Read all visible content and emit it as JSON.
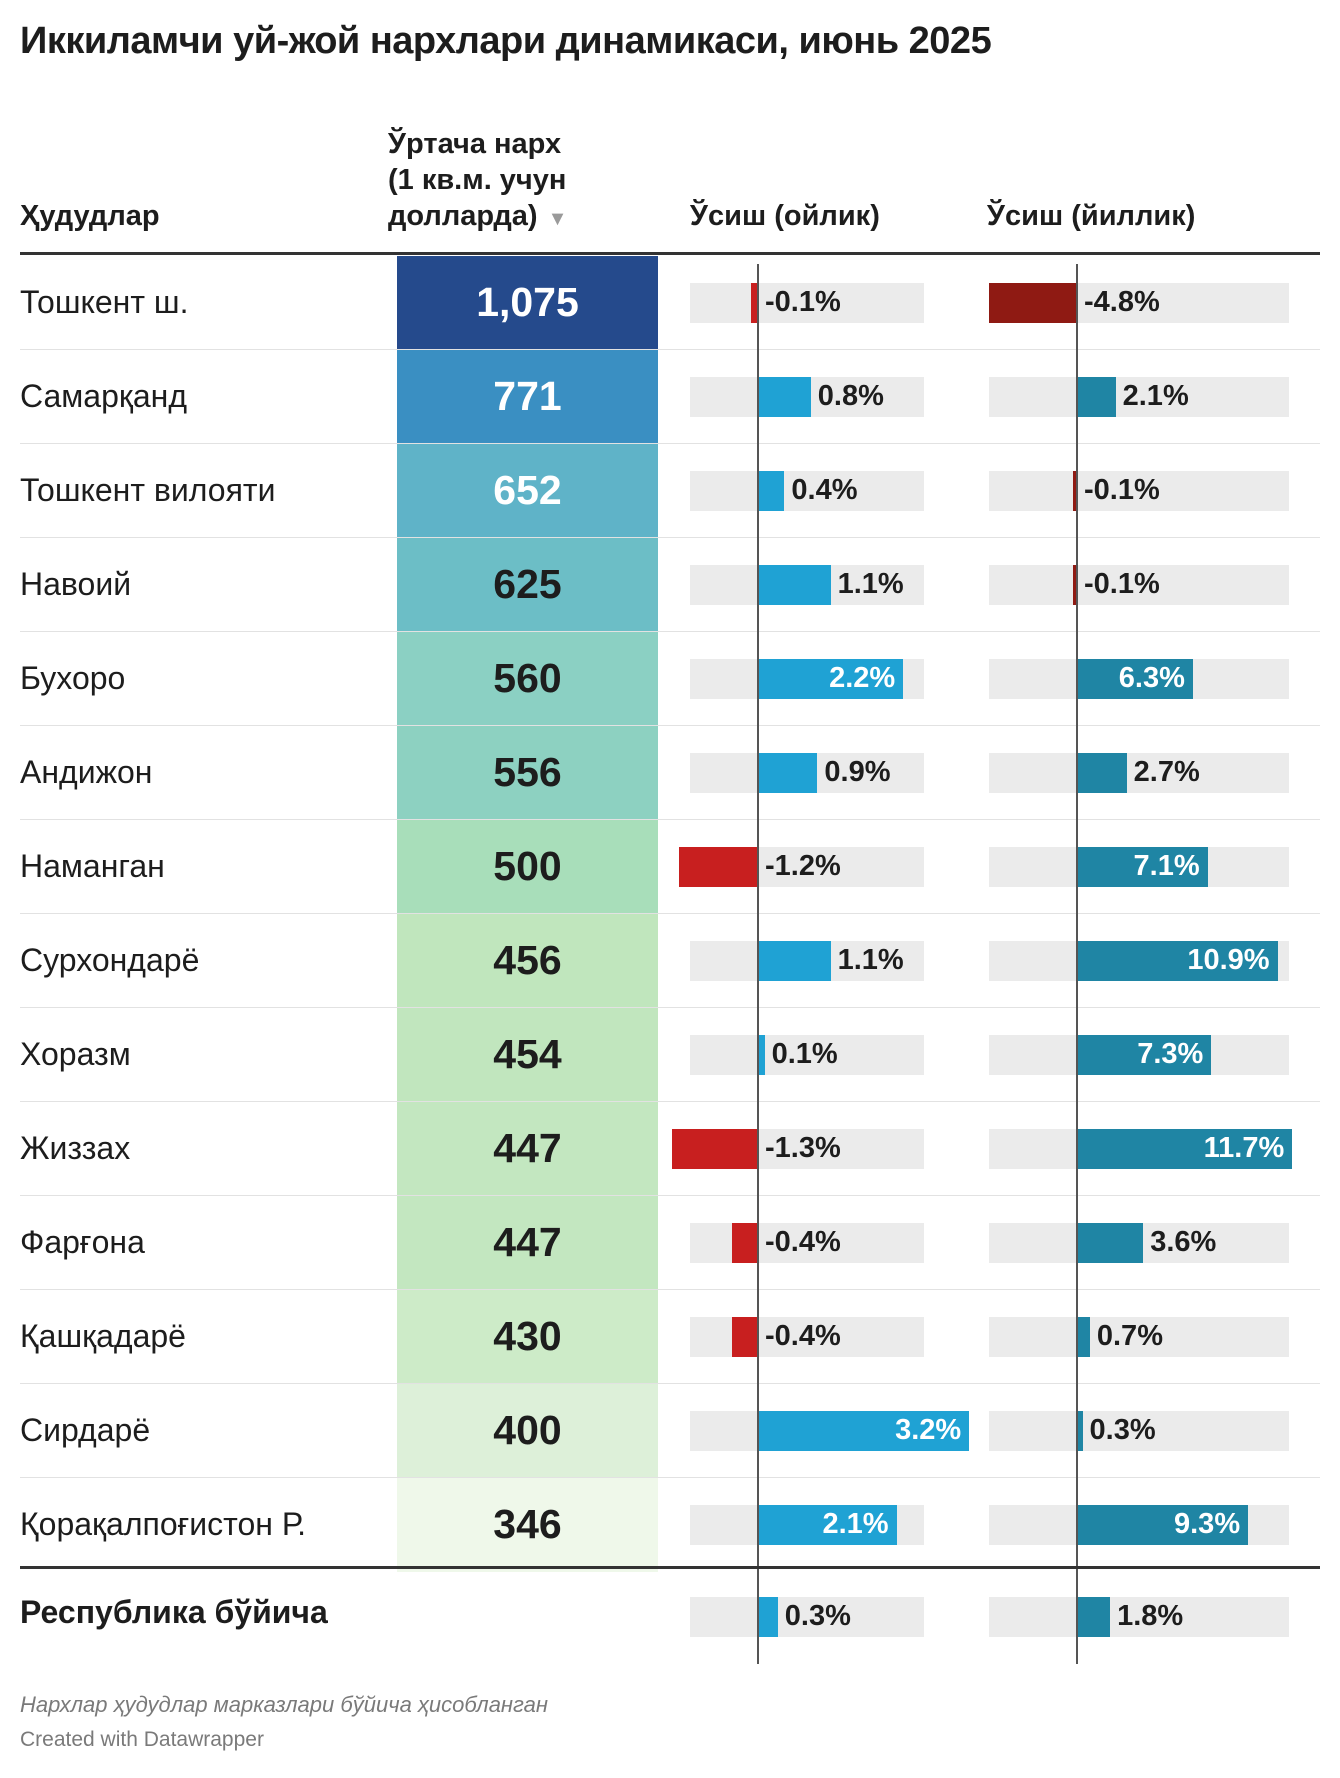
{
  "title": "Иккиламчи уй-жой нархлари динамикаси, июнь 2025",
  "headers": {
    "region": "Ҳудудлар",
    "price_line1": "Ўртача нарх",
    "price_line2": "(1 кв.м. учун",
    "price_line3": "долларда)",
    "sort_arrow": "▼",
    "monthly": "Ўсиш (ойлик)",
    "yearly": "Ўсиш (йиллик)"
  },
  "colors": {
    "positive_monthly": "#1fa2d4",
    "positive_yearly": "#1f85a4",
    "negative_monthly": "#c81f1f",
    "negative_yearly": "#8f1a13",
    "track": "#ebebeb"
  },
  "chart_data": {
    "type": "table",
    "columns": [
      "region",
      "price_usd_per_sqm",
      "growth_monthly_pct",
      "growth_yearly_pct"
    ],
    "rows": [
      {
        "region": "Тошкент ш.",
        "price": "1,075",
        "price_value": 1075,
        "monthly": "-0.1%",
        "monthly_value": -0.1,
        "yearly": "-4.8%",
        "yearly_value": -4.8,
        "price_color": "#254a8c"
      },
      {
        "region": "Самарқанд",
        "price": "771",
        "price_value": 771,
        "monthly": "0.8%",
        "monthly_value": 0.8,
        "yearly": "2.1%",
        "yearly_value": 2.1,
        "price_color": "#3a8fc2"
      },
      {
        "region": "Тошкент вилояти",
        "price": "652",
        "price_value": 652,
        "monthly": "0.4%",
        "monthly_value": 0.4,
        "yearly": "-0.1%",
        "yearly_value": -0.1,
        "price_color": "#5fb3c8"
      },
      {
        "region": "Навоий",
        "price": "625",
        "price_value": 625,
        "monthly": "1.1%",
        "monthly_value": 1.1,
        "yearly": "-0.1%",
        "yearly_value": -0.1,
        "price_color": "#6cbec6"
      },
      {
        "region": "Бухоро",
        "price": "560",
        "price_value": 560,
        "monthly": "2.2%",
        "monthly_value": 2.2,
        "yearly": "6.3%",
        "yearly_value": 6.3,
        "price_color": "#8bd0c3"
      },
      {
        "region": "Андижон",
        "price": "556",
        "price_value": 556,
        "monthly": "0.9%",
        "monthly_value": 0.9,
        "yearly": "2.7%",
        "yearly_value": 2.7,
        "price_color": "#8dd1c1"
      },
      {
        "region": "Наманган",
        "price": "500",
        "price_value": 500,
        "monthly": "-1.2%",
        "monthly_value": -1.2,
        "yearly": "7.1%",
        "yearly_value": 7.1,
        "price_color": "#a8deba"
      },
      {
        "region": "Сурхондарё",
        "price": "456",
        "price_value": 456,
        "monthly": "1.1%",
        "monthly_value": 1.1,
        "yearly": "10.9%",
        "yearly_value": 10.9,
        "price_color": "#c0e6bd"
      },
      {
        "region": "Хоразм",
        "price": "454",
        "price_value": 454,
        "monthly": "0.1%",
        "monthly_value": 0.1,
        "yearly": "7.3%",
        "yearly_value": 7.3,
        "price_color": "#c1e6be"
      },
      {
        "region": "Жиззах",
        "price": "447",
        "price_value": 447,
        "monthly": "-1.3%",
        "monthly_value": -1.3,
        "yearly": "11.7%",
        "yearly_value": 11.7,
        "price_color": "#c3e7c0"
      },
      {
        "region": "Фарғона",
        "price": "447",
        "price_value": 447,
        "monthly": "-0.4%",
        "monthly_value": -0.4,
        "yearly": "3.6%",
        "yearly_value": 3.6,
        "price_color": "#c3e7c0"
      },
      {
        "region": "Қашқадарё",
        "price": "430",
        "price_value": 430,
        "monthly": "-0.4%",
        "monthly_value": -0.4,
        "yearly": "0.7%",
        "yearly_value": 0.7,
        "price_color": "#cdebc8"
      },
      {
        "region": "Сирдарё",
        "price": "400",
        "price_value": 400,
        "monthly": "3.2%",
        "monthly_value": 3.2,
        "yearly": "0.3%",
        "yearly_value": 0.3,
        "price_color": "#ddf0d9"
      },
      {
        "region": "Қорақалпоғистон Р.",
        "price": "346",
        "price_value": 346,
        "monthly": "2.1%",
        "monthly_value": 2.1,
        "yearly": "9.3%",
        "yearly_value": 9.3,
        "price_color": "#eff8ea"
      }
    ],
    "total": {
      "region": "Республика бўйича",
      "monthly": "0.3%",
      "monthly_value": 0.3,
      "yearly": "1.8%",
      "yearly_value": 1.8
    },
    "monthly_range": [
      -1.3,
      3.2
    ],
    "yearly_range": [
      -4.8,
      11.7
    ]
  },
  "notes": "Нархлар ҳудудлар марказлари бўйича ҳисобланган",
  "credit": "Created with Datawrapper"
}
